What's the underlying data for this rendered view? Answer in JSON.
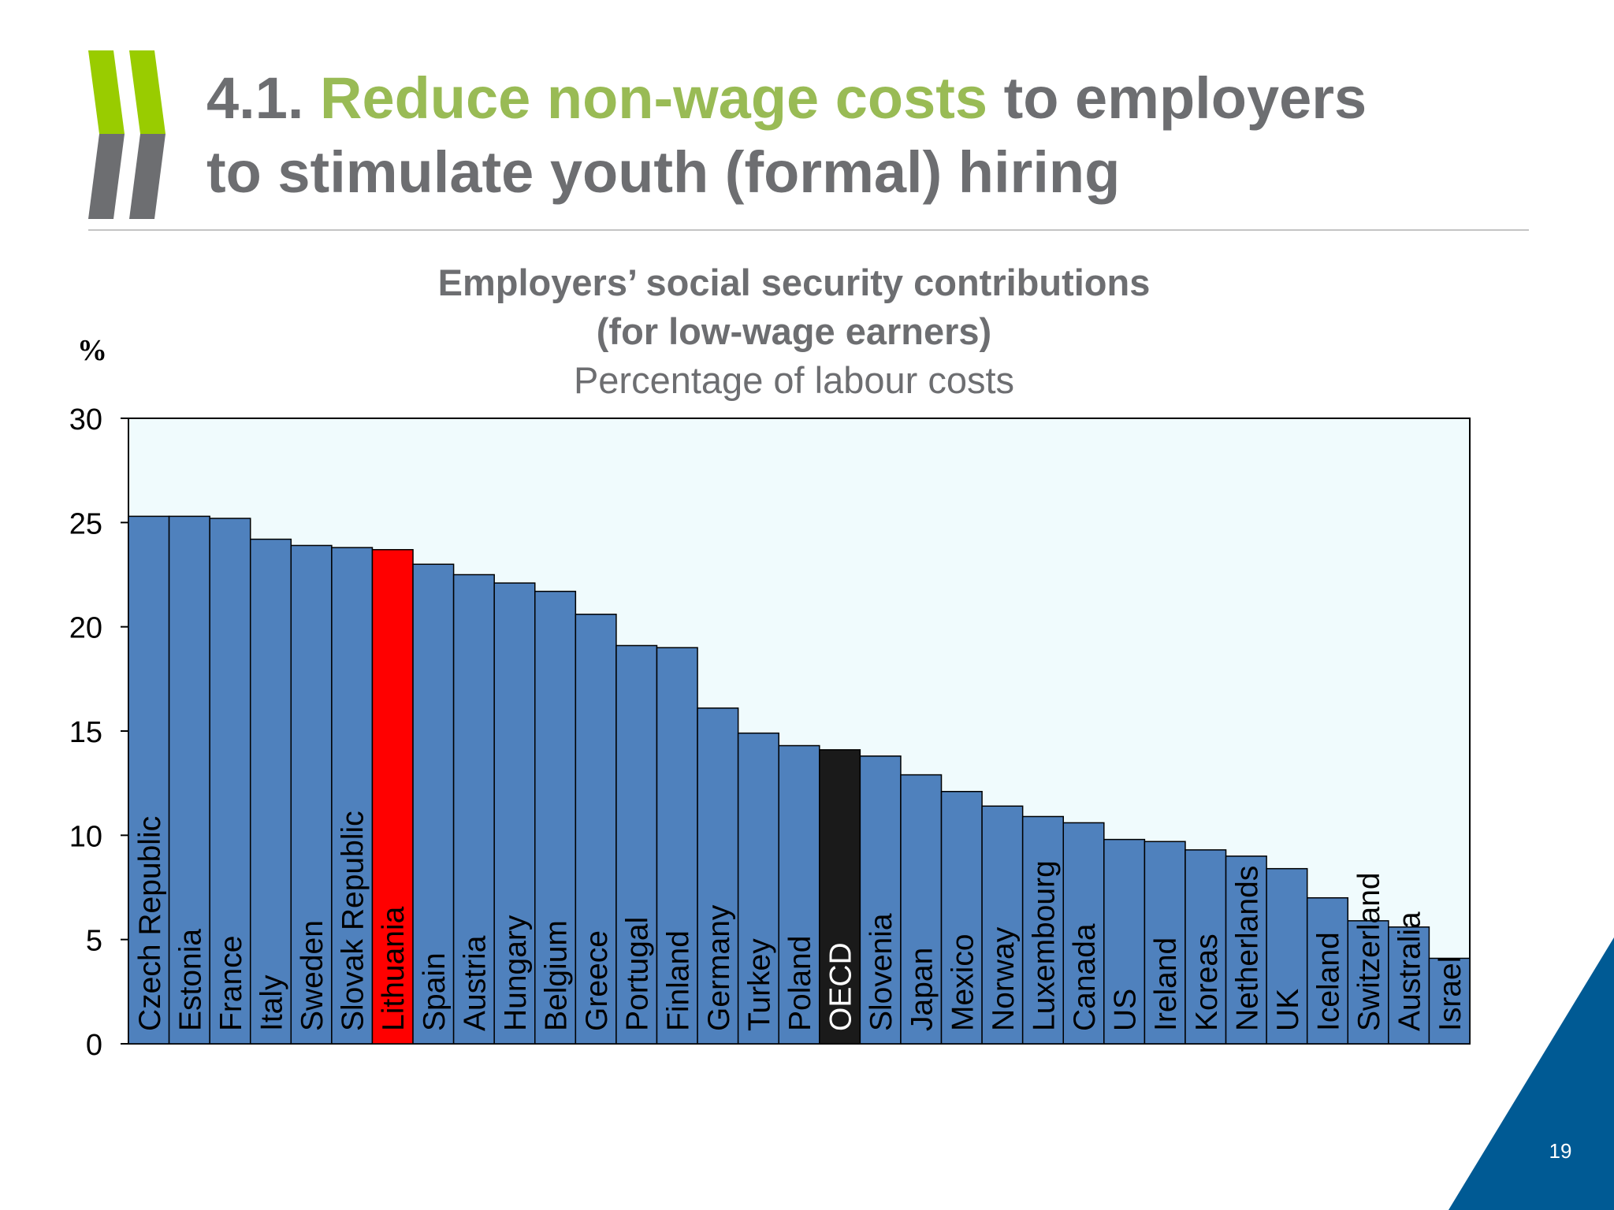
{
  "slide": {
    "title_prefix": "4.1. ",
    "title_highlight": "Reduce non-wage costs",
    "title_suffix": " to employers",
    "title_line2": "to stimulate youth (formal) hiring",
    "page_number": "19"
  },
  "colors": {
    "bar": "#4f81bd",
    "highlight_bar": "#ff0000",
    "oecd_bar": "#1a1a1a",
    "plot_background": "#f0fbfd",
    "title_green": "#99bb55",
    "title_grey": "#6d6e71",
    "corner_blue": "#005a94"
  },
  "chart_data": {
    "type": "bar",
    "title": "Employers’ social security contributions\n(for low-wage earners)",
    "subtitle": "Percentage of labour costs",
    "ylabel": "%",
    "ylim": [
      0,
      30
    ],
    "yticks": [
      0,
      5,
      10,
      15,
      20,
      25,
      30
    ],
    "grid": false,
    "legend": "none",
    "categories": [
      "Czech Republic",
      "Estonia",
      "France",
      "Italy",
      "Sweden",
      "Slovak Republic",
      "Lithuania",
      "Spain",
      "Austria",
      "Hungary",
      "Belgium",
      "Greece",
      "Portugal",
      "Finland",
      "Germany",
      "Turkey",
      "Poland",
      "OECD",
      "Slovenia",
      "Japan",
      "Mexico",
      "Norway",
      "Luxembourg",
      "Canada",
      "US",
      "Ireland",
      "Koreas",
      "Netherlands",
      "UK",
      "Iceland",
      "Switzerland",
      "Australia",
      "Israel"
    ],
    "values": [
      25.3,
      25.3,
      25.2,
      24.2,
      23.9,
      23.8,
      23.7,
      23.0,
      22.5,
      22.1,
      21.7,
      20.6,
      19.1,
      19.0,
      16.1,
      14.9,
      14.3,
      14.1,
      13.8,
      12.9,
      12.1,
      11.4,
      10.9,
      10.6,
      9.8,
      9.7,
      9.3,
      9.0,
      8.4,
      7.0,
      5.9,
      5.6,
      4.1
    ],
    "highlight": {
      "Lithuania": "highlight_bar",
      "OECD": "oecd_bar"
    }
  }
}
